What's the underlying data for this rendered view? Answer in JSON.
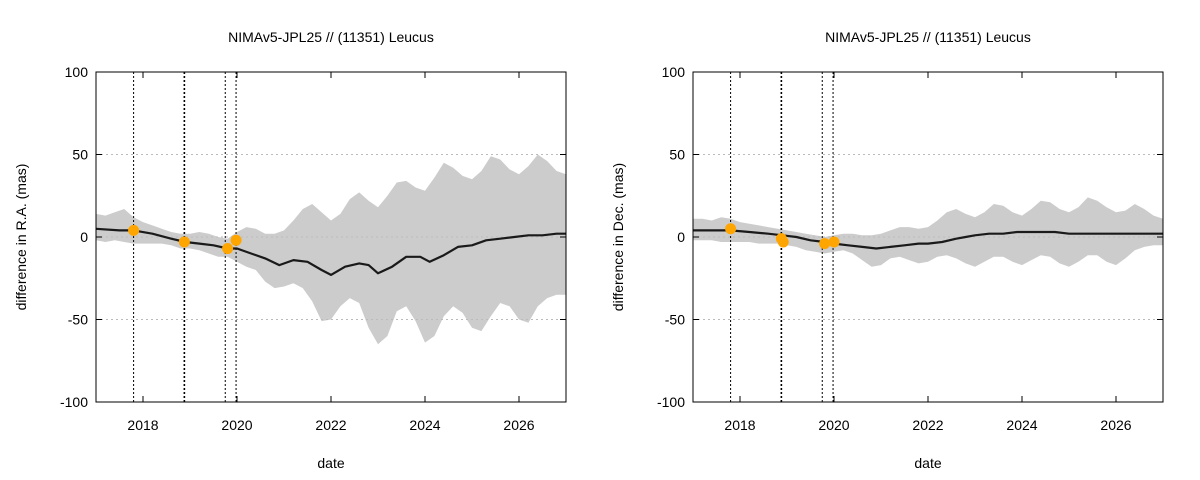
{
  "colors": {
    "uncertainty_band": "#cccccc",
    "difference_line": "#1a1a1a",
    "observation_points": "#ffa500",
    "grid": "#bbbbbb",
    "event_lines": "#000000"
  },
  "chart_data": [
    {
      "type": "line",
      "title": "NIMAv5-JPL25 // (11351) Leucus",
      "xlabel": "date",
      "ylabel": "difference in R.A. (mas)",
      "xlim": [
        2017.0,
        2027.0
      ],
      "ylim": [
        -100,
        100
      ],
      "xticks": [
        2018,
        2020,
        2022,
        2024,
        2026
      ],
      "xtick_labels": [
        "2018",
        "2020",
        "2022",
        "2024",
        "2026"
      ],
      "yticks": [
        -100,
        -50,
        0,
        50,
        100
      ],
      "ytick_labels": [
        "-100",
        "-50",
        "0",
        "50",
        "100"
      ],
      "grid": "horizontal dotted",
      "vertical_markers_x": [
        2017.8,
        2018.88,
        2019.75,
        2019.98
      ],
      "series": [
        {
          "x": [
            2017.0,
            2017.5,
            2017.8,
            2018.2,
            2018.6,
            2018.9,
            2019.2,
            2019.5,
            2019.8,
            2020.0,
            2020.3,
            2020.6,
            2020.9,
            2021.2,
            2021.5,
            2021.8,
            2022.0,
            2022.3,
            2022.6,
            2022.8,
            2023.0,
            2023.3,
            2023.6,
            2023.9,
            2024.1,
            2024.4,
            2024.7,
            2025.0,
            2025.3,
            2025.6,
            2025.9,
            2026.2,
            2026.5,
            2026.8,
            2027.0
          ],
          "values": [
            5,
            4,
            4,
            2,
            -1,
            -3,
            -4,
            -5,
            -7,
            -7,
            -10,
            -13,
            -17,
            -14,
            -15,
            -20,
            -23,
            -18,
            -16,
            -17,
            -22,
            -18,
            -12,
            -12,
            -15,
            -11,
            -6,
            -5,
            -2,
            -1,
            0,
            1,
            1,
            2,
            2
          ]
        },
        {
          "x": [
            2017.0,
            2017.2,
            2017.4,
            2017.6,
            2017.8,
            2018.0,
            2018.2,
            2018.4,
            2018.6,
            2018.8,
            2019.0,
            2019.2,
            2019.4,
            2019.6,
            2019.8,
            2020.0,
            2020.2,
            2020.4,
            2020.6,
            2020.8,
            2021.0,
            2021.2,
            2021.4,
            2021.6,
            2021.8,
            2022.0,
            2022.2,
            2022.4,
            2022.6,
            2022.8,
            2023.0,
            2023.2,
            2023.4,
            2023.6,
            2023.8,
            2024.0,
            2024.2,
            2024.4,
            2024.6,
            2024.8,
            2025.0,
            2025.2,
            2025.4,
            2025.6,
            2025.8,
            2026.0,
            2026.2,
            2026.4,
            2026.6,
            2026.8,
            2027.0
          ],
          "values": [
            14,
            13,
            15,
            17,
            12,
            9,
            7,
            5,
            3,
            2,
            2,
            3,
            2,
            0,
            -1,
            3,
            6,
            5,
            2,
            2,
            4,
            10,
            17,
            20,
            15,
            10,
            14,
            23,
            27,
            22,
            18,
            25,
            33,
            34,
            30,
            28,
            36,
            45,
            42,
            37,
            35,
            40,
            49,
            47,
            41,
            38,
            43,
            50,
            46,
            40,
            38
          ]
        },
        {
          "x": [
            2017.0,
            2017.2,
            2017.4,
            2017.6,
            2017.8,
            2018.0,
            2018.2,
            2018.4,
            2018.6,
            2018.8,
            2019.0,
            2019.2,
            2019.4,
            2019.6,
            2019.8,
            2020.0,
            2020.2,
            2020.4,
            2020.6,
            2020.8,
            2021.0,
            2021.2,
            2021.4,
            2021.6,
            2021.8,
            2022.0,
            2022.2,
            2022.4,
            2022.6,
            2022.8,
            2023.0,
            2023.2,
            2023.4,
            2023.6,
            2023.8,
            2024.0,
            2024.2,
            2024.4,
            2024.6,
            2024.8,
            2025.0,
            2025.2,
            2025.4,
            2025.6,
            2025.8,
            2026.0,
            2026.2,
            2026.4,
            2026.6,
            2026.8,
            2027.0
          ],
          "values": [
            -2,
            -3,
            -2,
            -3,
            -4,
            -4,
            -4,
            -4,
            -5,
            -7,
            -7,
            -8,
            -10,
            -12,
            -12,
            -15,
            -18,
            -20,
            -27,
            -31,
            -30,
            -28,
            -31,
            -39,
            -51,
            -50,
            -42,
            -37,
            -40,
            -55,
            -65,
            -60,
            -45,
            -42,
            -51,
            -64,
            -60,
            -48,
            -42,
            -46,
            -55,
            -57,
            -48,
            -40,
            -42,
            -50,
            -52,
            -42,
            -37,
            -35,
            -35
          ]
        },
        {
          "x": [
            2017.8,
            2018.88,
            2019.8,
            2019.98
          ],
          "values": [
            4,
            -3,
            -7,
            -2
          ]
        }
      ]
    },
    {
      "type": "line",
      "title": "NIMAv5-JPL25 // (11351) Leucus",
      "xlabel": "date",
      "ylabel": "difference in Dec. (mas)",
      "xlim": [
        2017.0,
        2027.0
      ],
      "ylim": [
        -100,
        100
      ],
      "xticks": [
        2018,
        2020,
        2022,
        2024,
        2026
      ],
      "xtick_labels": [
        "2018",
        "2020",
        "2022",
        "2024",
        "2026"
      ],
      "yticks": [
        -100,
        -50,
        0,
        50,
        100
      ],
      "ytick_labels": [
        "-100",
        "-50",
        "0",
        "50",
        "100"
      ],
      "grid": "horizontal dotted",
      "vertical_markers_x": [
        2017.8,
        2018.88,
        2019.75,
        2019.98
      ],
      "series": [
        {
          "x": [
            2017.0,
            2017.5,
            2017.8,
            2018.2,
            2018.6,
            2018.9,
            2019.2,
            2019.5,
            2019.8,
            2020.0,
            2020.3,
            2020.6,
            2020.9,
            2021.2,
            2021.5,
            2021.8,
            2022.0,
            2022.3,
            2022.6,
            2022.8,
            2023.0,
            2023.3,
            2023.6,
            2023.9,
            2024.1,
            2024.4,
            2024.7,
            2025.0,
            2025.3,
            2025.6,
            2025.9,
            2026.2,
            2026.5,
            2026.8,
            2027.0
          ],
          "values": [
            4,
            4,
            4,
            3,
            2,
            1,
            0,
            -2,
            -3,
            -4,
            -5,
            -6,
            -7,
            -6,
            -5,
            -4,
            -4,
            -3,
            -1,
            0,
            1,
            2,
            2,
            3,
            3,
            3,
            3,
            2,
            2,
            2,
            2,
            2,
            2,
            2,
            2
          ]
        },
        {
          "x": [
            2017.0,
            2017.2,
            2017.4,
            2017.6,
            2017.8,
            2018.0,
            2018.2,
            2018.4,
            2018.6,
            2018.8,
            2019.0,
            2019.2,
            2019.4,
            2019.6,
            2019.8,
            2020.0,
            2020.2,
            2020.4,
            2020.6,
            2020.8,
            2021.0,
            2021.2,
            2021.4,
            2021.6,
            2021.8,
            2022.0,
            2022.2,
            2022.4,
            2022.6,
            2022.8,
            2023.0,
            2023.2,
            2023.4,
            2023.6,
            2023.8,
            2024.0,
            2024.2,
            2024.4,
            2024.6,
            2024.8,
            2025.0,
            2025.2,
            2025.4,
            2025.6,
            2025.8,
            2026.0,
            2026.2,
            2026.4,
            2026.6,
            2026.8,
            2027.0
          ],
          "values": [
            11,
            11,
            10,
            12,
            11,
            9,
            8,
            7,
            6,
            5,
            4,
            3,
            2,
            1,
            0,
            1,
            2,
            2,
            1,
            1,
            2,
            4,
            6,
            6,
            5,
            6,
            10,
            15,
            17,
            14,
            12,
            15,
            20,
            19,
            15,
            13,
            17,
            22,
            21,
            17,
            15,
            18,
            24,
            22,
            18,
            15,
            16,
            20,
            17,
            13,
            11
          ]
        },
        {
          "x": [
            2017.0,
            2017.2,
            2017.4,
            2017.6,
            2017.8,
            2018.0,
            2018.2,
            2018.4,
            2018.6,
            2018.8,
            2019.0,
            2019.2,
            2019.4,
            2019.6,
            2019.8,
            2020.0,
            2020.2,
            2020.4,
            2020.6,
            2020.8,
            2021.0,
            2021.2,
            2021.4,
            2021.6,
            2021.8,
            2022.0,
            2022.2,
            2022.4,
            2022.6,
            2022.8,
            2023.0,
            2023.2,
            2023.4,
            2023.6,
            2023.8,
            2024.0,
            2024.2,
            2024.4,
            2024.6,
            2024.8,
            2025.0,
            2025.2,
            2025.4,
            2025.6,
            2025.8,
            2026.0,
            2026.2,
            2026.4,
            2026.6,
            2026.8,
            2027.0
          ],
          "values": [
            -2,
            -2,
            -2,
            -3,
            -3,
            -3,
            -3,
            -4,
            -4,
            -4,
            -5,
            -6,
            -8,
            -9,
            -10,
            -9,
            -8,
            -10,
            -14,
            -18,
            -17,
            -13,
            -12,
            -14,
            -16,
            -15,
            -12,
            -11,
            -13,
            -16,
            -18,
            -15,
            -12,
            -12,
            -15,
            -17,
            -14,
            -11,
            -12,
            -16,
            -18,
            -15,
            -11,
            -11,
            -15,
            -17,
            -13,
            -8,
            -6,
            -5,
            -5
          ]
        },
        {
          "x": [
            2017.8,
            2018.88,
            2018.92,
            2019.8,
            2020.0
          ],
          "values": [
            5,
            -1,
            -3,
            -4,
            -3
          ]
        }
      ]
    }
  ]
}
